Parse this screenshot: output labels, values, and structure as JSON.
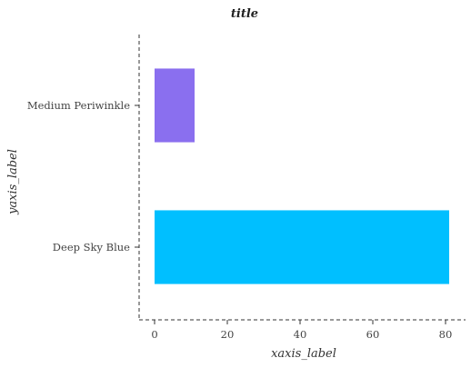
{
  "chart_data": {
    "type": "bar",
    "orientation": "horizontal",
    "title": "title",
    "xlabel": "xaxis_label",
    "ylabel": "yaxis_label",
    "categories": [
      "Deep Sky Blue",
      "Medium Periwinkle"
    ],
    "values": [
      81,
      11
    ],
    "colors": [
      "#00BFFF",
      "#8A6FEF"
    ],
    "xlim": [
      0,
      85
    ],
    "xticks": [
      0,
      20,
      40,
      60,
      80
    ],
    "grid": false,
    "legend": "none"
  }
}
